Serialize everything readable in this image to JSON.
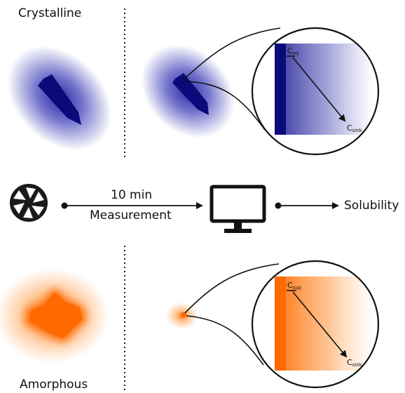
{
  "labels": {
    "crystalline": "Crystalline",
    "amorphous": "Amorphous",
    "time": "10 min",
    "measurement": "Measurement",
    "solubility": "Solubility"
  },
  "inset_crystalline": {
    "start_base": "C",
    "start_sub": "eq",
    "end_base": "C",
    "end_sub": "sink",
    "color": "#0a0a7a"
  },
  "inset_amorphous": {
    "start_base": "C",
    "start_sub": "sup",
    "end_base": "C",
    "end_sub": "sink",
    "color": "#ff6a00"
  },
  "icons": {
    "camera": "camera-aperture-icon",
    "computer": "computer-monitor-icon"
  },
  "colors": {
    "blue": "#0a0a7a",
    "blue_glow": "#2b2bb0",
    "orange": "#ff6a00",
    "orange_glow": "#ff8a2a"
  }
}
